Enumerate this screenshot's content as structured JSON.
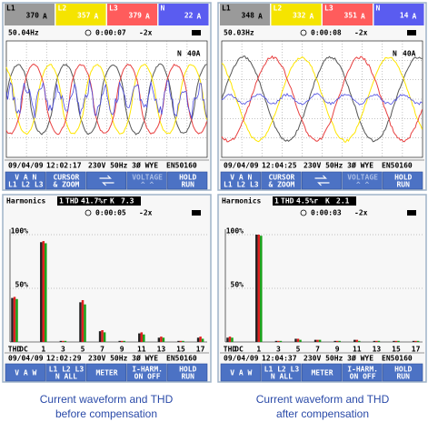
{
  "panels": [
    {
      "readings": [
        {
          "label": "L1",
          "value": 370,
          "unit": "A"
        },
        {
          "label": "L2",
          "value": 357,
          "unit": "A"
        },
        {
          "label": "L3",
          "value": 379,
          "unit": "A"
        },
        {
          "label": "N",
          "value": 22,
          "unit": "A"
        }
      ],
      "frequency": "50.04Hz",
      "timer": "0:00:07",
      "zoom": "-2x",
      "scale_phase": "N",
      "scale": "40A",
      "footer": {
        "date": "09/04/09",
        "time": "12:02:17",
        "info": "230V 50Hz 3Ø WYE",
        "standard": "EN50160"
      },
      "softkeys": [
        [
          "V A N",
          "L1 L2 L3"
        ],
        [
          "CURSOR",
          "& ZOOM"
        ],
        [
          "VOLTAGE",
          "^   ^"
        ],
        [
          "HOLD",
          "RUN"
        ]
      ]
    },
    {
      "readings": [
        {
          "label": "L1",
          "value": 348,
          "unit": "A"
        },
        {
          "label": "L2",
          "value": 332,
          "unit": "A"
        },
        {
          "label": "L3",
          "value": 351,
          "unit": "A"
        },
        {
          "label": "N",
          "value": 14,
          "unit": "A"
        }
      ],
      "frequency": "50.03Hz",
      "timer": "0:00:08",
      "zoom": "-2x",
      "scale_phase": "N",
      "scale": "40A",
      "footer": {
        "date": "09/04/09",
        "time": "12:04:25",
        "info": "230V 50Hz 3Ø WYE",
        "standard": "EN50160"
      },
      "softkeys": [
        [
          "V A N",
          "L1 L2 L3"
        ],
        [
          "CURSOR",
          "& ZOOM"
        ],
        [
          "VOLTAGE",
          "^   ^"
        ],
        [
          "HOLD",
          "RUN"
        ]
      ]
    },
    {
      "title": "Harmonics",
      "phase": "1",
      "thd_label": "THD",
      "thd_value": "41.7%r",
      "k_label": "K",
      "k_value": "7.3",
      "timer": "0:00:05",
      "zoom": "-2x",
      "ylim": [
        0,
        100
      ],
      "yticks": [
        {
          "value": 50,
          "label": "50%"
        },
        {
          "value": 100,
          "label": "100%"
        }
      ],
      "categories": [
        "THD",
        "DC",
        "1",
        null,
        "3",
        null,
        "5",
        null,
        "7",
        null,
        "9",
        null,
        "11",
        null,
        "13",
        null,
        "15",
        null,
        "17"
      ],
      "series": [
        {
          "color": "#222222",
          "values": [
            41,
            0,
            93,
            0,
            1,
            0,
            37,
            0,
            10,
            0,
            1,
            0,
            8,
            0,
            4,
            0,
            1,
            0,
            4
          ]
        },
        {
          "color": "#e02020",
          "values": [
            42,
            0,
            94,
            0,
            1,
            0,
            39,
            0,
            11,
            0,
            1,
            0,
            9,
            0,
            5,
            0,
            1,
            0,
            5
          ]
        },
        {
          "color": "#18a018",
          "values": [
            40,
            0,
            92,
            0,
            1,
            0,
            35,
            0,
            9,
            0,
            1,
            0,
            7,
            0,
            4,
            0,
            1,
            0,
            3
          ]
        }
      ],
      "footer": {
        "date": "09/04/09",
        "time": "12:02:29",
        "info": "230V 50Hz 3Ø WYE",
        "standard": "EN50160"
      },
      "softkeys": [
        [
          "V A W"
        ],
        [
          "L1 L2 L3",
          "N ALL"
        ],
        [
          "METER"
        ],
        [
          "I-HARM.",
          "ON OFF"
        ],
        [
          "HOLD",
          "RUN"
        ]
      ]
    },
    {
      "title": "Harmonics",
      "phase": "1",
      "thd_label": "THD",
      "thd_value": "4.5%r",
      "k_label": "K",
      "k_value": "2.1",
      "timer": "0:00:03",
      "zoom": "-2x",
      "ylim": [
        0,
        100
      ],
      "yticks": [
        {
          "value": 50,
          "label": "50%"
        },
        {
          "value": 100,
          "label": "100%"
        }
      ],
      "categories": [
        "THD",
        "DC",
        "1",
        null,
        "3",
        null,
        "5",
        null,
        "7",
        null,
        "9",
        null,
        "11",
        null,
        "13",
        null,
        "15",
        null,
        "17"
      ],
      "series": [
        {
          "color": "#222222",
          "values": [
            4,
            0,
            100,
            0,
            1,
            0,
            3,
            0,
            2,
            0,
            1,
            0,
            2,
            0,
            1,
            0,
            1,
            0,
            1
          ]
        },
        {
          "color": "#e02020",
          "values": [
            5,
            0,
            100,
            0,
            1,
            0,
            3,
            0,
            2,
            0,
            1,
            0,
            2,
            0,
            1,
            0,
            1,
            0,
            1
          ]
        },
        {
          "color": "#18a018",
          "values": [
            4,
            0,
            99,
            0,
            1,
            0,
            2,
            0,
            2,
            0,
            1,
            0,
            1,
            0,
            1,
            0,
            1,
            0,
            1
          ]
        }
      ],
      "footer": {
        "date": "09/04/09",
        "time": "12:04:37",
        "info": "230V 50Hz 3Ø WYE",
        "standard": "EN50160"
      },
      "softkeys": [
        [
          "V A W"
        ],
        [
          "L1 L2 L3",
          "N ALL"
        ],
        [
          "METER"
        ],
        [
          "I-HARM.",
          "ON OFF"
        ],
        [
          "HOLD",
          "RUN"
        ]
      ]
    }
  ],
  "captions": [
    {
      "line1": "Current waveform and THD",
      "line2": "before compensation"
    },
    {
      "line1": "Current waveform and THD",
      "line2": "after compensation"
    }
  ]
}
